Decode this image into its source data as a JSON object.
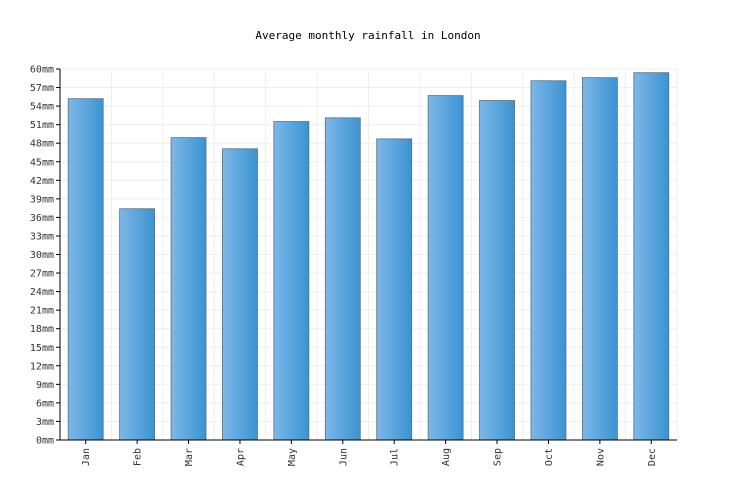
{
  "chart_data": {
    "type": "bar",
    "title": "Average monthly rainfall in London",
    "xlabel": "",
    "ylabel": "",
    "categories": [
      "Jan",
      "Feb",
      "Mar",
      "Apr",
      "May",
      "Jun",
      "Jul",
      "Aug",
      "Sep",
      "Oct",
      "Nov",
      "Dec"
    ],
    "values": [
      55.2,
      37.4,
      48.9,
      47.1,
      51.5,
      52.1,
      48.7,
      55.7,
      54.9,
      58.1,
      58.6,
      59.4
    ],
    "ylim": [
      0,
      60
    ],
    "yticks": [
      0,
      3,
      6,
      9,
      12,
      15,
      18,
      21,
      24,
      27,
      30,
      33,
      36,
      39,
      42,
      45,
      48,
      51,
      54,
      57,
      60
    ],
    "y_unit": "mm",
    "grid": true,
    "bar_color_light": "#7db8e8",
    "bar_color_dark": "#3a93d2"
  }
}
